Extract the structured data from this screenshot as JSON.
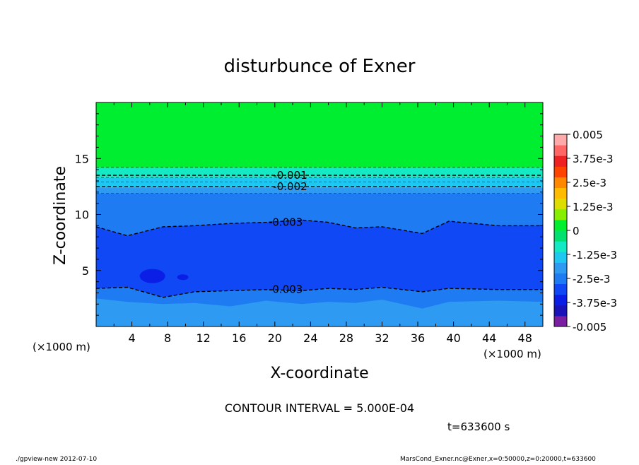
{
  "chart_data": {
    "type": "contour",
    "title": "disturbunce of Exner",
    "xlabel": "X-coordinate",
    "ylabel": "Z-coordinate",
    "x_unit_label": "(×1000 m)",
    "y_unit_label": "(×1000 m)",
    "xlim": [
      0,
      50
    ],
    "ylim": [
      0,
      20
    ],
    "x_ticks": [
      4,
      8,
      12,
      16,
      20,
      24,
      28,
      32,
      36,
      40,
      44,
      48
    ],
    "y_ticks": [
      5,
      10,
      15
    ],
    "contour_interval_text": "CONTOUR INTERVAL = 5.000E-04",
    "time_text": "t=633600 s",
    "footer_left": "./gpview-new  2012-07-10",
    "footer_right": "MarsCond_Exner.nc@Exner,x=0:50000,z=0:20000,t=633600",
    "colorbar": {
      "labels": [
        "0.005",
        "3.75e-3",
        "2.5e-3",
        "1.25e-3",
        "0",
        "-1.25e-3",
        "-2.5e-3",
        "-3.75e-3",
        "-0.005"
      ],
      "min": -0.005,
      "max": 0.005,
      "colors": [
        "#7a1fa2",
        "#1a13b8",
        "#0b1ee6",
        "#1048f5",
        "#1f7bf2",
        "#2e9af2",
        "#1fc8f0",
        "#13eac4",
        "#00e070",
        "#00ee30",
        "#88ee00",
        "#dddd00",
        "#ffbb00",
        "#ff8800",
        "#ff4400",
        "#ee2222",
        "#ff6666",
        "#ffaaaa"
      ]
    },
    "regions": [
      {
        "z_from": 14.2,
        "z_to": 20,
        "color": "#00ee30"
      },
      {
        "z_from": 13.3,
        "z_to": 14.2,
        "color": "#13eac4"
      },
      {
        "z_from": 12.4,
        "z_to": 13.3,
        "color": "#1fc8f0"
      },
      {
        "z_from": 11.9,
        "z_to": 12.4,
        "color": "#2e9af2"
      },
      {
        "z_from": 0,
        "z_to": 11.9,
        "color": "#1f7bf2"
      }
    ],
    "contours": [
      {
        "level": -0.001,
        "label": "-0.001",
        "label_x": 19.5,
        "z": [
          13.5,
          13.5,
          13.5,
          13.5,
          13.5,
          13.5,
          13.5,
          13.5,
          13.5,
          13.5,
          13.5,
          13.5,
          13.5,
          13.5
        ]
      },
      {
        "level": -0.002,
        "label": "-0.002",
        "label_x": 19.5,
        "z": [
          12.5,
          12.5,
          12.5,
          12.5,
          12.5,
          12.5,
          12.5,
          12.5,
          12.5,
          12.5,
          12.5,
          12.5,
          12.5,
          12.5
        ]
      },
      {
        "level": -0.003,
        "label": "-0.003",
        "label_x": 19,
        "z": [
          8.9,
          8.1,
          8.9,
          9.0,
          9.2,
          9.3,
          9.5,
          9.3,
          8.8,
          8.9,
          8.3,
          9.4,
          9.0,
          9.0
        ]
      },
      {
        "level": -0.003,
        "label": "-0.003",
        "label_x": 19,
        "z": [
          3.4,
          3.5,
          2.6,
          3.1,
          3.2,
          3.3,
          3.2,
          3.4,
          3.3,
          3.5,
          3.1,
          3.4,
          3.3,
          3.3
        ]
      }
    ],
    "contour_x": [
      0,
      3.5,
      7.5,
      11,
      15,
      19,
      23,
      26,
      29,
      32,
      36.5,
      39.5,
      45,
      50
    ],
    "inner_band": {
      "color": "#1048f5",
      "top_z": [
        8.9,
        8.1,
        8.9,
        9.0,
        9.2,
        9.3,
        9.5,
        9.3,
        8.8,
        8.9,
        8.3,
        9.4,
        9.0,
        9.0
      ],
      "bottom_z": [
        3.4,
        3.5,
        2.6,
        3.1,
        3.2,
        3.3,
        3.2,
        3.4,
        3.3,
        3.5,
        3.1,
        3.4,
        3.3,
        3.3
      ]
    },
    "lowest_band": {
      "color": "#2e9af2",
      "top_z": [
        2.5,
        2.2,
        2.0,
        2.1,
        1.8,
        2.3,
        2.0,
        2.2,
        2.1,
        2.4,
        1.6,
        2.2,
        2.3,
        2.2
      ]
    },
    "blobs": [
      {
        "x": 6.3,
        "z": 4.5,
        "color": "#0b1ee6"
      },
      {
        "x": 9.7,
        "z": 4.4,
        "color": "#0b1ee6"
      }
    ]
  }
}
